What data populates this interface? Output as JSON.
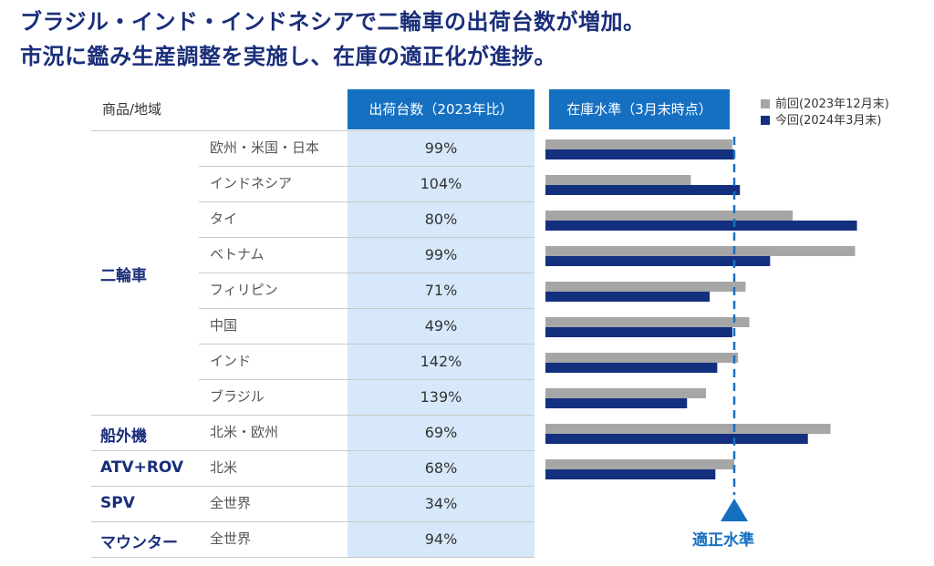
{
  "headline": {
    "line1": "ブラジル・インド・インドネシアで二輪車の出荷台数が増加。",
    "line2": "市況に鑑み生産調整を実施し、在庫の適正化が進捗。"
  },
  "table": {
    "col_product_region": "商品/地域",
    "col_shipments": "出荷台数（2023年比）",
    "col_inventory": "在庫水準（3月末時点）"
  },
  "categories": [
    {
      "name": "二輪車",
      "row_span": 8
    },
    {
      "name": "船外機",
      "row_span": 1
    },
    {
      "name": "ATV+ROV",
      "row_span": 1
    },
    {
      "name": "SPV",
      "row_span": 1
    },
    {
      "name": "マウンター",
      "row_span": 1
    }
  ],
  "rows": [
    {
      "category": "二輪車",
      "region": "欧州・米国・日本",
      "shipments": "99%"
    },
    {
      "category": "二輪車",
      "region": "インドネシア",
      "shipments": "104%"
    },
    {
      "category": "二輪車",
      "region": "タイ",
      "shipments": "80%"
    },
    {
      "category": "二輪車",
      "region": "ベトナム",
      "shipments": "99%"
    },
    {
      "category": "二輪車",
      "region": "フィリピン",
      "shipments": "71%"
    },
    {
      "category": "二輪車",
      "region": "中国",
      "shipments": "49%"
    },
    {
      "category": "二輪車",
      "region": "インド",
      "shipments": "142%"
    },
    {
      "category": "二輪車",
      "region": "ブラジル",
      "shipments": "139%"
    },
    {
      "category": "船外機",
      "region": "北米・欧州",
      "shipments": "69%"
    },
    {
      "category": "ATV+ROV",
      "region": "北米",
      "shipments": "68%"
    },
    {
      "category": "SPV",
      "region": "全世界",
      "shipments": "34%"
    },
    {
      "category": "マウンター",
      "region": "全世界",
      "shipments": "94%"
    }
  ],
  "legend": {
    "previous": "前回(2023年12月末)",
    "current": "今回(2024年3月末)"
  },
  "target_label": "適正水準",
  "colors": {
    "headline": "#1a2e7a",
    "header_blue": "#1670c2",
    "shipments_bg": "#d6e8fa",
    "bar_previous": "#a6a6a6",
    "bar_current": "#13307f",
    "target_line": "#1670c2"
  },
  "chart_data": {
    "type": "bar",
    "orientation": "horizontal",
    "title": "在庫水準（3月末時点）",
    "note": "Values are relative to the appropriate inventory level (適正水準 = 1.0); no numeric axis shown, estimated from bar lengths",
    "categories": [
      "欧州・米国・日本",
      "インドネシア",
      "タイ",
      "ベトナム",
      "フィリピン",
      "中国",
      "インド",
      "ブラジル",
      "北米・欧州",
      "北米"
    ],
    "series": [
      {
        "name": "前回(2023年12月末)",
        "values": [
          0.99,
          0.77,
          1.31,
          1.64,
          1.06,
          1.08,
          1.02,
          0.85,
          1.51,
          1.0
        ]
      },
      {
        "name": "今回(2024年3月末)",
        "values": [
          1.0,
          1.03,
          1.65,
          1.19,
          0.87,
          0.99,
          0.91,
          0.75,
          1.39,
          0.9
        ]
      }
    ],
    "reference_line": {
      "label": "適正水準",
      "value": 1.0
    },
    "xlim": [
      0,
      1.7
    ]
  }
}
